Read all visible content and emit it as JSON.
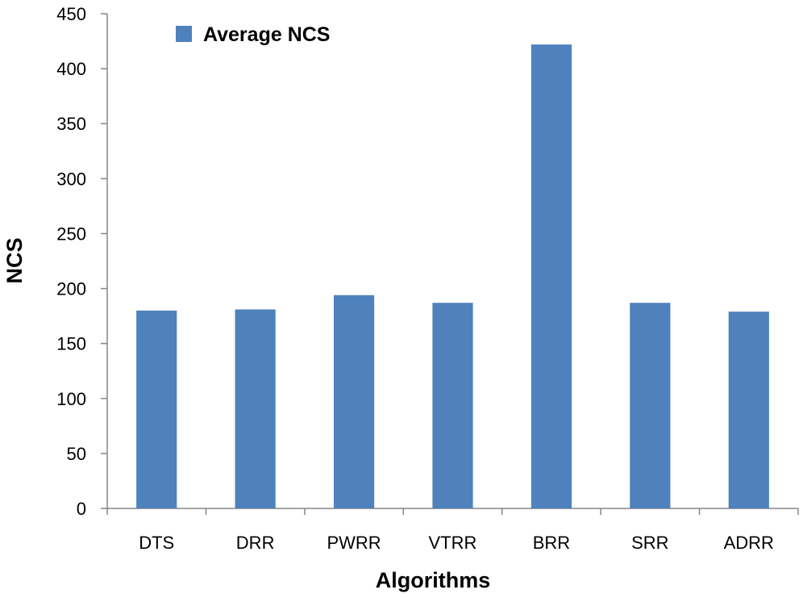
{
  "chart_data": {
    "type": "bar",
    "categories": [
      "DTS",
      "DRR",
      "PWRR",
      "VTRR",
      "BRR",
      "SRR",
      "ADRR"
    ],
    "series": [
      {
        "name": "Average NCS",
        "values": [
          180,
          181,
          194,
          187,
          422,
          187,
          179
        ],
        "color": "#4f81bd"
      }
    ],
    "xlabel": "Algorithms",
    "ylabel": "NCS",
    "ylim": [
      0,
      450
    ],
    "yticks": [
      0,
      50,
      100,
      150,
      200,
      250,
      300,
      350,
      400,
      450
    ],
    "grid": false,
    "legend_position": "top-left"
  }
}
